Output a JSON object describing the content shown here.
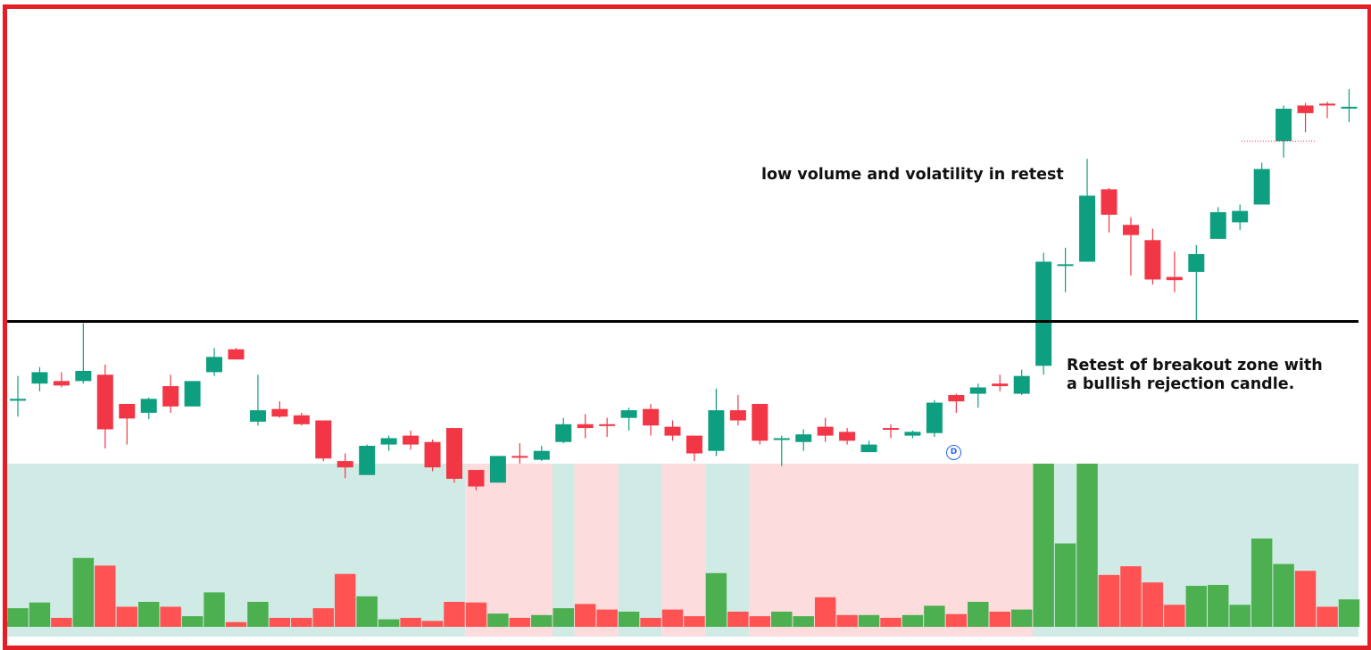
{
  "colors": {
    "bull": "#0e9f80",
    "bear": "#f23645",
    "volume_bull": "#4caf50",
    "volume_bear": "#ff5252",
    "bull_zone": "#d0ebe5",
    "bear_zone": "#fcdcdc",
    "frame": "#e31e24",
    "level_line": "#000000",
    "marker": "#2962ff"
  },
  "annotations": {
    "retest_low_volume": "low volume and volatility in retest",
    "retest_breakout_line1": "Retest of breakout zone with",
    "retest_breakout_line2": "a bullish rejection candle."
  },
  "marker": {
    "label": "D"
  },
  "chart_data": {
    "type": "candlestick",
    "scale": {
      "price_min": 0,
      "price_max": 100,
      "volume_max": 100
    },
    "breakout_level": 50.5,
    "candles": [
      {
        "o": 38.0,
        "h": 41.9,
        "l": 35.5,
        "c": 38.3,
        "v": 11.4,
        "zone": "bull"
      },
      {
        "o": 40.7,
        "h": 43.3,
        "l": 39.5,
        "c": 42.5,
        "v": 14.9,
        "zone": "bull"
      },
      {
        "o": 41.1,
        "h": 42.5,
        "l": 40.1,
        "c": 40.4,
        "v": 5.5,
        "zone": "bull"
      },
      {
        "o": 41.1,
        "h": 50.2,
        "l": 40.7,
        "c": 42.7,
        "v": 42.2,
        "zone": "bull"
      },
      {
        "o": 42.1,
        "h": 43.7,
        "l": 30.5,
        "c": 33.5,
        "v": 37.5,
        "zone": "bull"
      },
      {
        "o": 37.5,
        "h": 37.5,
        "l": 31.1,
        "c": 35.2,
        "v": 12.3,
        "zone": "bull"
      },
      {
        "o": 36.1,
        "h": 38.5,
        "l": 35.1,
        "c": 38.3,
        "v": 15.3,
        "zone": "bull"
      },
      {
        "o": 40.3,
        "h": 42.1,
        "l": 36.1,
        "c": 37.1,
        "v": 12.3,
        "zone": "bull"
      },
      {
        "o": 37.1,
        "h": 41.1,
        "l": 37.1,
        "c": 41.1,
        "v": 6.5,
        "zone": "bull"
      },
      {
        "o": 42.5,
        "h": 46.3,
        "l": 41.9,
        "c": 44.9,
        "v": 21.1,
        "zone": "bull"
      },
      {
        "o": 46.1,
        "h": 46.3,
        "l": 44.5,
        "c": 44.5,
        "v": 2.9,
        "zone": "bull"
      },
      {
        "o": 34.7,
        "h": 42.1,
        "l": 34.1,
        "c": 36.5,
        "v": 15.3,
        "zone": "bull"
      },
      {
        "o": 36.7,
        "h": 37.9,
        "l": 35.3,
        "c": 35.5,
        "v": 5.5,
        "zone": "bull"
      },
      {
        "o": 35.7,
        "h": 36.1,
        "l": 34.1,
        "c": 34.3,
        "v": 5.5,
        "zone": "bull"
      },
      {
        "o": 34.9,
        "h": 34.9,
        "l": 28.5,
        "c": 28.9,
        "v": 11.4,
        "zone": "bull"
      },
      {
        "o": 28.5,
        "h": 29.7,
        "l": 25.8,
        "c": 27.5,
        "v": 32.4,
        "zone": "bull"
      },
      {
        "o": 26.3,
        "h": 31.1,
        "l": 26.3,
        "c": 30.9,
        "v": 18.7,
        "zone": "bull"
      },
      {
        "o": 31.1,
        "h": 32.5,
        "l": 30.1,
        "c": 32.1,
        "v": 4.6,
        "zone": "bull"
      },
      {
        "o": 32.5,
        "h": 33.3,
        "l": 30.3,
        "c": 31.1,
        "v": 5.5,
        "zone": "bull"
      },
      {
        "o": 31.5,
        "h": 31.9,
        "l": 26.9,
        "c": 27.5,
        "v": 3.6,
        "zone": "bull"
      },
      {
        "o": 33.7,
        "h": 33.7,
        "l": 25.1,
        "c": 25.7,
        "v": 15.3,
        "zone": "bull"
      },
      {
        "o": 27.1,
        "h": 27.1,
        "l": 23.9,
        "c": 24.5,
        "v": 14.9,
        "zone": "bear"
      },
      {
        "o": 25.1,
        "h": 29.3,
        "l": 25.1,
        "c": 29.3,
        "v": 8.1,
        "zone": "bear"
      },
      {
        "o": 29.3,
        "h": 31.3,
        "l": 28.1,
        "c": 29.1,
        "v": 5.5,
        "zone": "bear"
      },
      {
        "o": 28.7,
        "h": 30.9,
        "l": 28.5,
        "c": 30.1,
        "v": 7.2,
        "zone": "bear"
      },
      {
        "o": 31.5,
        "h": 35.3,
        "l": 31.3,
        "c": 34.3,
        "v": 11.4,
        "zone": "bull"
      },
      {
        "o": 34.3,
        "h": 35.9,
        "l": 32.1,
        "c": 33.7,
        "v": 14.0,
        "zone": "bear"
      },
      {
        "o": 34.3,
        "h": 35.3,
        "l": 32.3,
        "c": 34.1,
        "v": 10.6,
        "zone": "bear"
      },
      {
        "o": 35.3,
        "h": 36.9,
        "l": 33.3,
        "c": 36.5,
        "v": 9.3,
        "zone": "bull"
      },
      {
        "o": 36.7,
        "h": 37.5,
        "l": 32.5,
        "c": 34.1,
        "v": 5.5,
        "zone": "bull"
      },
      {
        "o": 33.9,
        "h": 34.9,
        "l": 31.7,
        "c": 32.5,
        "v": 10.6,
        "zone": "bear"
      },
      {
        "o": 32.5,
        "h": 32.5,
        "l": 28.5,
        "c": 29.7,
        "v": 6.5,
        "zone": "bear"
      },
      {
        "o": 30.1,
        "h": 39.9,
        "l": 29.3,
        "c": 36.5,
        "v": 32.9,
        "zone": "bull"
      },
      {
        "o": 36.5,
        "h": 38.9,
        "l": 34.1,
        "c": 34.9,
        "v": 9.3,
        "zone": "bull"
      },
      {
        "o": 37.5,
        "h": 37.5,
        "l": 31.1,
        "c": 31.7,
        "v": 6.5,
        "zone": "bear"
      },
      {
        "o": 32.1,
        "h": 32.5,
        "l": 27.7,
        "c": 32.1,
        "v": 9.3,
        "zone": "bear"
      },
      {
        "o": 31.5,
        "h": 33.5,
        "l": 30.1,
        "c": 32.7,
        "v": 6.5,
        "zone": "bear"
      },
      {
        "o": 33.9,
        "h": 35.3,
        "l": 31.5,
        "c": 32.5,
        "v": 18.1,
        "zone": "bear"
      },
      {
        "o": 33.1,
        "h": 33.7,
        "l": 31.1,
        "c": 31.7,
        "v": 7.2,
        "zone": "bear"
      },
      {
        "o": 29.9,
        "h": 31.7,
        "l": 29.9,
        "c": 31.1,
        "v": 7.2,
        "zone": "bear"
      },
      {
        "o": 33.7,
        "h": 34.3,
        "l": 32.1,
        "c": 33.5,
        "v": 5.5,
        "zone": "bear"
      },
      {
        "o": 32.5,
        "h": 33.3,
        "l": 32.1,
        "c": 33.1,
        "v": 7.2,
        "zone": "bear"
      },
      {
        "o": 32.9,
        "h": 38.1,
        "l": 32.3,
        "c": 37.7,
        "v": 12.9,
        "zone": "bear"
      },
      {
        "o": 38.9,
        "h": 39.1,
        "l": 36.1,
        "c": 37.9,
        "v": 7.8,
        "zone": "bear"
      },
      {
        "o": 39.1,
        "h": 40.7,
        "l": 36.9,
        "c": 40.1,
        "v": 15.3,
        "zone": "bear"
      },
      {
        "o": 40.7,
        "h": 42.1,
        "l": 39.5,
        "c": 40.3,
        "v": 9.3,
        "zone": "bear"
      },
      {
        "o": 39.1,
        "h": 42.9,
        "l": 38.9,
        "c": 41.9,
        "v": 10.6,
        "zone": "bear"
      },
      {
        "o": 43.5,
        "h": 61.3,
        "l": 42.1,
        "c": 59.9,
        "v": 100,
        "zone": "bull"
      },
      {
        "o": 59.3,
        "h": 62.1,
        "l": 55.1,
        "c": 59.5,
        "v": 51.1,
        "zone": "bull"
      },
      {
        "o": 59.9,
        "h": 76.1,
        "l": 59.9,
        "c": 70.3,
        "v": 100,
        "zone": "bull"
      },
      {
        "o": 71.3,
        "h": 71.5,
        "l": 64.5,
        "c": 67.3,
        "v": 31.8,
        "zone": "bull"
      },
      {
        "o": 65.7,
        "h": 66.9,
        "l": 57.7,
        "c": 64.1,
        "v": 37.1,
        "zone": "bull"
      },
      {
        "o": 63.3,
        "h": 65.1,
        "l": 56.3,
        "c": 57.1,
        "v": 27.2,
        "zone": "bull"
      },
      {
        "o": 57.5,
        "h": 61.5,
        "l": 55.1,
        "c": 57.0,
        "v": 13.5,
        "zone": "bull"
      },
      {
        "o": 58.3,
        "h": 62.5,
        "l": 50.5,
        "c": 61.1,
        "v": 25.1,
        "zone": "bull"
      },
      {
        "o": 63.5,
        "h": 68.5,
        "l": 63.5,
        "c": 67.7,
        "v": 25.7,
        "zone": "bull"
      },
      {
        "o": 66.1,
        "h": 68.9,
        "l": 64.9,
        "c": 67.9,
        "v": 13.5,
        "zone": "bull"
      },
      {
        "o": 68.9,
        "h": 75.5,
        "l": 68.9,
        "c": 74.5,
        "v": 54.1,
        "zone": "bull"
      },
      {
        "o": 78.9,
        "h": 84.5,
        "l": 76.3,
        "c": 84.0,
        "v": 38.5,
        "zone": "bull"
      },
      {
        "o": 84.5,
        "h": 84.9,
        "l": 80.3,
        "c": 83.3,
        "v": 34.3,
        "zone": "bull"
      },
      {
        "o": 84.8,
        "h": 85.1,
        "l": 82.5,
        "c": 84.5,
        "v": 12.3,
        "zone": "bull"
      },
      {
        "o": 84.3,
        "h": 87.1,
        "l": 81.9,
        "c": 84.3,
        "v": 16.8,
        "zone": "bull"
      }
    ]
  }
}
